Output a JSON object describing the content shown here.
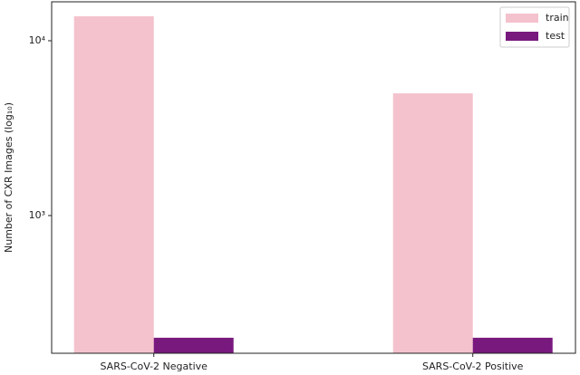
{
  "chart_data": {
    "type": "bar",
    "categories": [
      "SARS-CoV-2 Negative",
      "SARS-CoV-2 Positive"
    ],
    "series": [
      {
        "name": "train",
        "color": "#f4c2cc",
        "values": [
          13800,
          5000
        ]
      },
      {
        "name": "test",
        "color": "#78197e",
        "values": [
          200,
          200
        ]
      }
    ],
    "y_label": "Number of CXR Images (log₁₀)",
    "log_y": true,
    "ylim": [
      163,
      16700
    ],
    "yticks": [
      {
        "value": 1000,
        "label": "10³"
      },
      {
        "value": 10000,
        "label": "10⁴"
      }
    ],
    "legend": "upper right"
  }
}
